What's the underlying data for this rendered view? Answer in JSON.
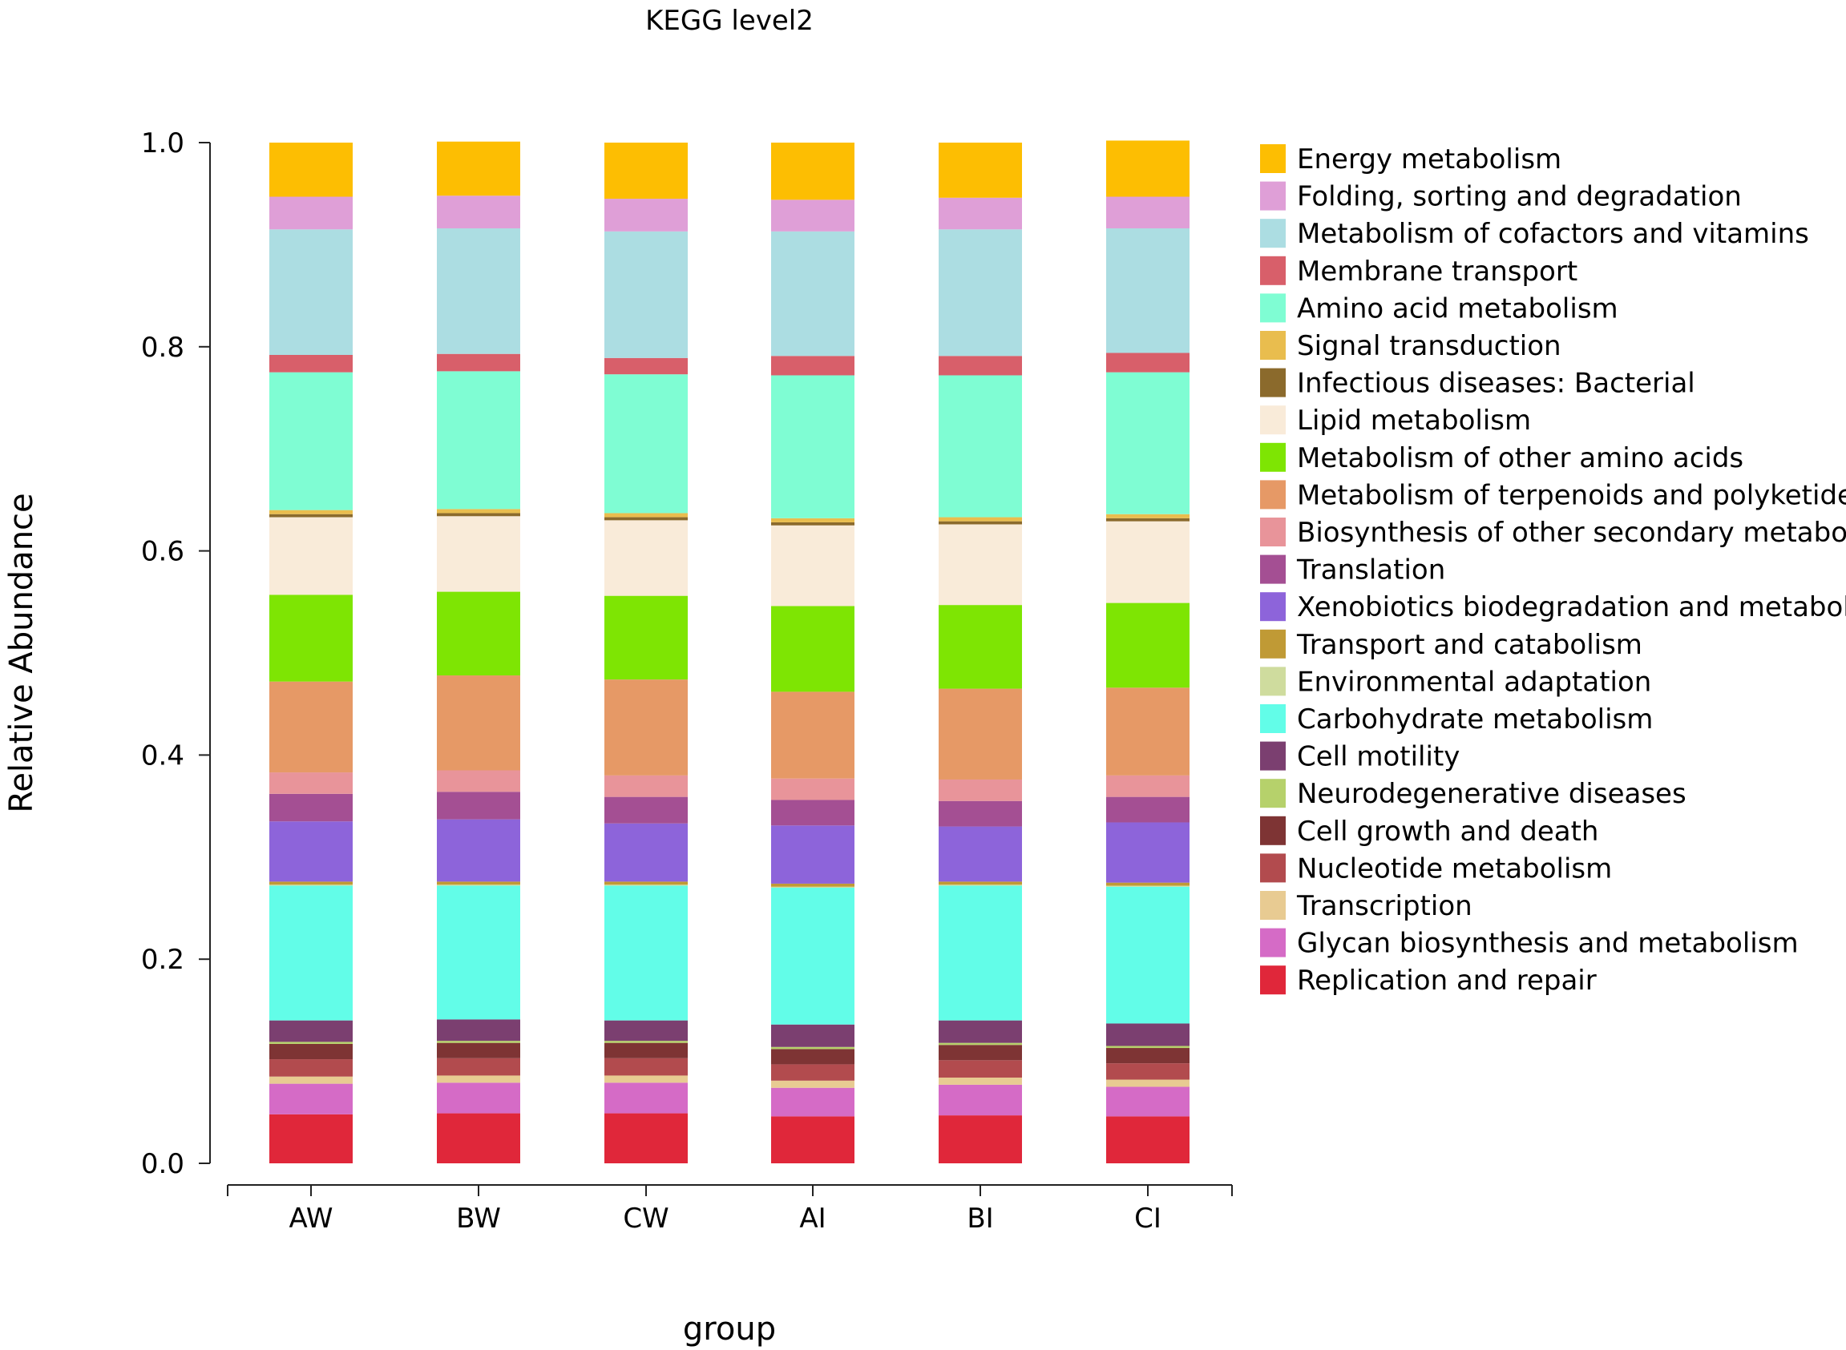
{
  "chart_data": {
    "type": "bar",
    "stacked": true,
    "title": "KEGG level2",
    "xlabel": "group",
    "ylabel": "Relative Abundance",
    "ylim": [
      0.0,
      1.0
    ],
    "y_ticks": [
      "0.0",
      "0.2",
      "0.4",
      "0.6",
      "0.8",
      "1.0"
    ],
    "y_tick_values": [
      0.0,
      0.2,
      0.4,
      0.6,
      0.8,
      1.0
    ],
    "grid": false,
    "legend_position": "right",
    "categories": [
      "AW",
      "BW",
      "CW",
      "AI",
      "BI",
      "CI"
    ],
    "series": [
      {
        "name": "Replication and repair",
        "color": "#e0273a",
        "values": [
          0.048,
          0.049,
          0.049,
          0.046,
          0.047,
          0.046
        ]
      },
      {
        "name": "Glycan biosynthesis and metabolism",
        "color": "#d56bc6",
        "values": [
          0.03,
          0.03,
          0.03,
          0.028,
          0.03,
          0.029
        ]
      },
      {
        "name": "Transcription",
        "color": "#e8cb92",
        "values": [
          0.007,
          0.007,
          0.007,
          0.007,
          0.007,
          0.007
        ]
      },
      {
        "name": "Nucleotide metabolism",
        "color": "#b24b4e",
        "values": [
          0.017,
          0.017,
          0.017,
          0.016,
          0.017,
          0.016
        ]
      },
      {
        "name": "Cell growth and death",
        "color": "#7e3434",
        "values": [
          0.015,
          0.015,
          0.015,
          0.015,
          0.015,
          0.015
        ]
      },
      {
        "name": "Neurodegenerative diseases",
        "color": "#b6d16b",
        "values": [
          0.002,
          0.002,
          0.002,
          0.002,
          0.002,
          0.002
        ]
      },
      {
        "name": "Cell motility",
        "color": "#7b3f70",
        "values": [
          0.021,
          0.021,
          0.02,
          0.022,
          0.022,
          0.022
        ]
      },
      {
        "name": "Carbohydrate metabolism",
        "color": "#62fde8",
        "values": [
          0.132,
          0.131,
          0.132,
          0.134,
          0.132,
          0.134
        ]
      },
      {
        "name": "Environmental adaptation",
        "color": "#cfdc9e",
        "values": [
          0.001,
          0.001,
          0.001,
          0.001,
          0.001,
          0.001
        ]
      },
      {
        "name": "Transport and catabolism",
        "color": "#c09a35",
        "values": [
          0.003,
          0.003,
          0.003,
          0.003,
          0.003,
          0.003
        ]
      },
      {
        "name": "Xenobiotics biodegradation and metabolism",
        "color": "#8d64da",
        "values": [
          0.059,
          0.061,
          0.057,
          0.057,
          0.054,
          0.059
        ]
      },
      {
        "name": "Translation",
        "color": "#a44f93",
        "values": [
          0.027,
          0.027,
          0.026,
          0.025,
          0.025,
          0.025
        ]
      },
      {
        "name": "Biosynthesis of other secondary metabolites",
        "color": "#e8949a",
        "values": [
          0.021,
          0.021,
          0.021,
          0.021,
          0.021,
          0.021
        ]
      },
      {
        "name": "Metabolism of terpenoids and polyketides",
        "color": "#e69966",
        "values": [
          0.089,
          0.093,
          0.094,
          0.085,
          0.089,
          0.086
        ]
      },
      {
        "name": "Metabolism of other amino acids",
        "color": "#7ee503",
        "values": [
          0.085,
          0.082,
          0.082,
          0.084,
          0.082,
          0.083
        ]
      },
      {
        "name": "Lipid metabolism",
        "color": "#f9ebd9",
        "values": [
          0.076,
          0.074,
          0.074,
          0.079,
          0.079,
          0.08
        ]
      },
      {
        "name": "Infectious diseases: Bacterial",
        "color": "#8b6a2c",
        "values": [
          0.003,
          0.003,
          0.003,
          0.003,
          0.003,
          0.003
        ]
      },
      {
        "name": "Signal transduction",
        "color": "#e9bd4e",
        "values": [
          0.004,
          0.004,
          0.004,
          0.004,
          0.004,
          0.004
        ]
      },
      {
        "name": "Amino acid metabolism",
        "color": "#7ffdd3",
        "values": [
          0.135,
          0.135,
          0.136,
          0.14,
          0.139,
          0.139
        ]
      },
      {
        "name": "Membrane transport",
        "color": "#d85f6a",
        "values": [
          0.017,
          0.017,
          0.016,
          0.019,
          0.019,
          0.019
        ]
      },
      {
        "name": "Metabolism of cofactors and vitamins",
        "color": "#acdde2",
        "values": [
          0.123,
          0.123,
          0.124,
          0.122,
          0.124,
          0.122
        ]
      },
      {
        "name": "Folding, sorting and degradation",
        "color": "#df9fd7",
        "values": [
          0.032,
          0.032,
          0.032,
          0.031,
          0.031,
          0.031
        ]
      },
      {
        "name": "Energy metabolism",
        "color": "#fdbe02",
        "values": [
          0.053,
          0.053,
          0.055,
          0.056,
          0.054,
          0.055
        ]
      }
    ]
  }
}
